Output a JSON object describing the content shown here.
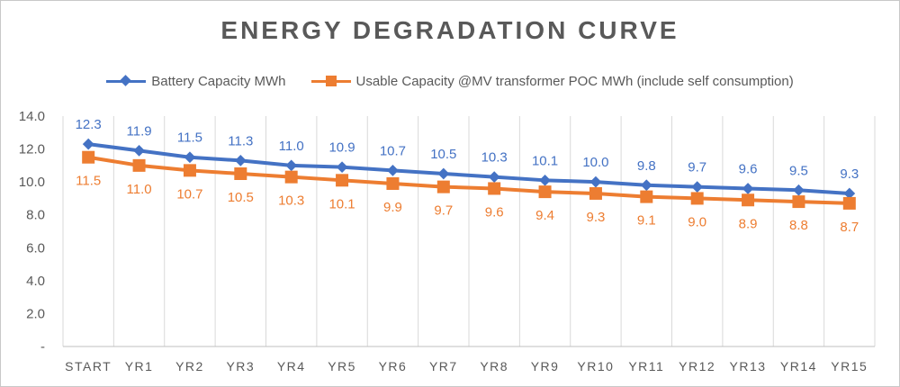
{
  "chart_data": {
    "type": "line",
    "title": "ENERGY DEGRADATION CURVE",
    "categories": [
      "START",
      "YR1",
      "YR2",
      "YR3",
      "YR4",
      "YR5",
      "YR6",
      "YR7",
      "YR8",
      "YR9",
      "YR10",
      "YR11",
      "YR12",
      "YR13",
      "YR14",
      "YR15"
    ],
    "series": [
      {
        "name": "Battery Capacity MWh",
        "color": "#4472C4",
        "marker": "diamond",
        "values": [
          12.3,
          11.9,
          11.5,
          11.3,
          11.0,
          10.9,
          10.7,
          10.5,
          10.3,
          10.1,
          10.0,
          9.8,
          9.7,
          9.6,
          9.5,
          9.3
        ],
        "labels": [
          "12.3",
          "11.9",
          "11.5",
          "11.3",
          "11.0",
          "10.9",
          "10.7",
          "10.5",
          "10.3",
          "10.1",
          "10.0",
          "9.8",
          "9.7",
          "9.6",
          "9.5",
          "9.3"
        ]
      },
      {
        "name": "Usable Capacity @MV transformer POC MWh (include self consumption)",
        "color": "#ED7D31",
        "marker": "square",
        "values": [
          11.5,
          11.0,
          10.7,
          10.5,
          10.3,
          10.1,
          9.9,
          9.7,
          9.6,
          9.4,
          9.3,
          9.1,
          9.0,
          8.9,
          8.8,
          8.7
        ],
        "labels": [
          "11.5",
          "11.0",
          "10.7",
          "10.5",
          "10.3",
          "10.1",
          "9.9",
          "9.7",
          "9.6",
          "9.4",
          "9.3",
          "9.1",
          "9.0",
          "8.9",
          "8.8",
          "8.7"
        ]
      }
    ],
    "ylim": [
      0,
      14
    ],
    "yticks": [
      {
        "value": 0,
        "label": "-"
      },
      {
        "value": 2,
        "label": "2.0"
      },
      {
        "value": 4,
        "label": "4.0"
      },
      {
        "value": 6,
        "label": "6.0"
      },
      {
        "value": 8,
        "label": "8.0"
      },
      {
        "value": 10,
        "label": "10.0"
      },
      {
        "value": 12,
        "label": "12.0"
      },
      {
        "value": 14,
        "label": "14.0"
      }
    ],
    "grid": "vertical",
    "legend": "top",
    "axis_text_color": "#595959",
    "grid_color": "#d9d9d9"
  }
}
